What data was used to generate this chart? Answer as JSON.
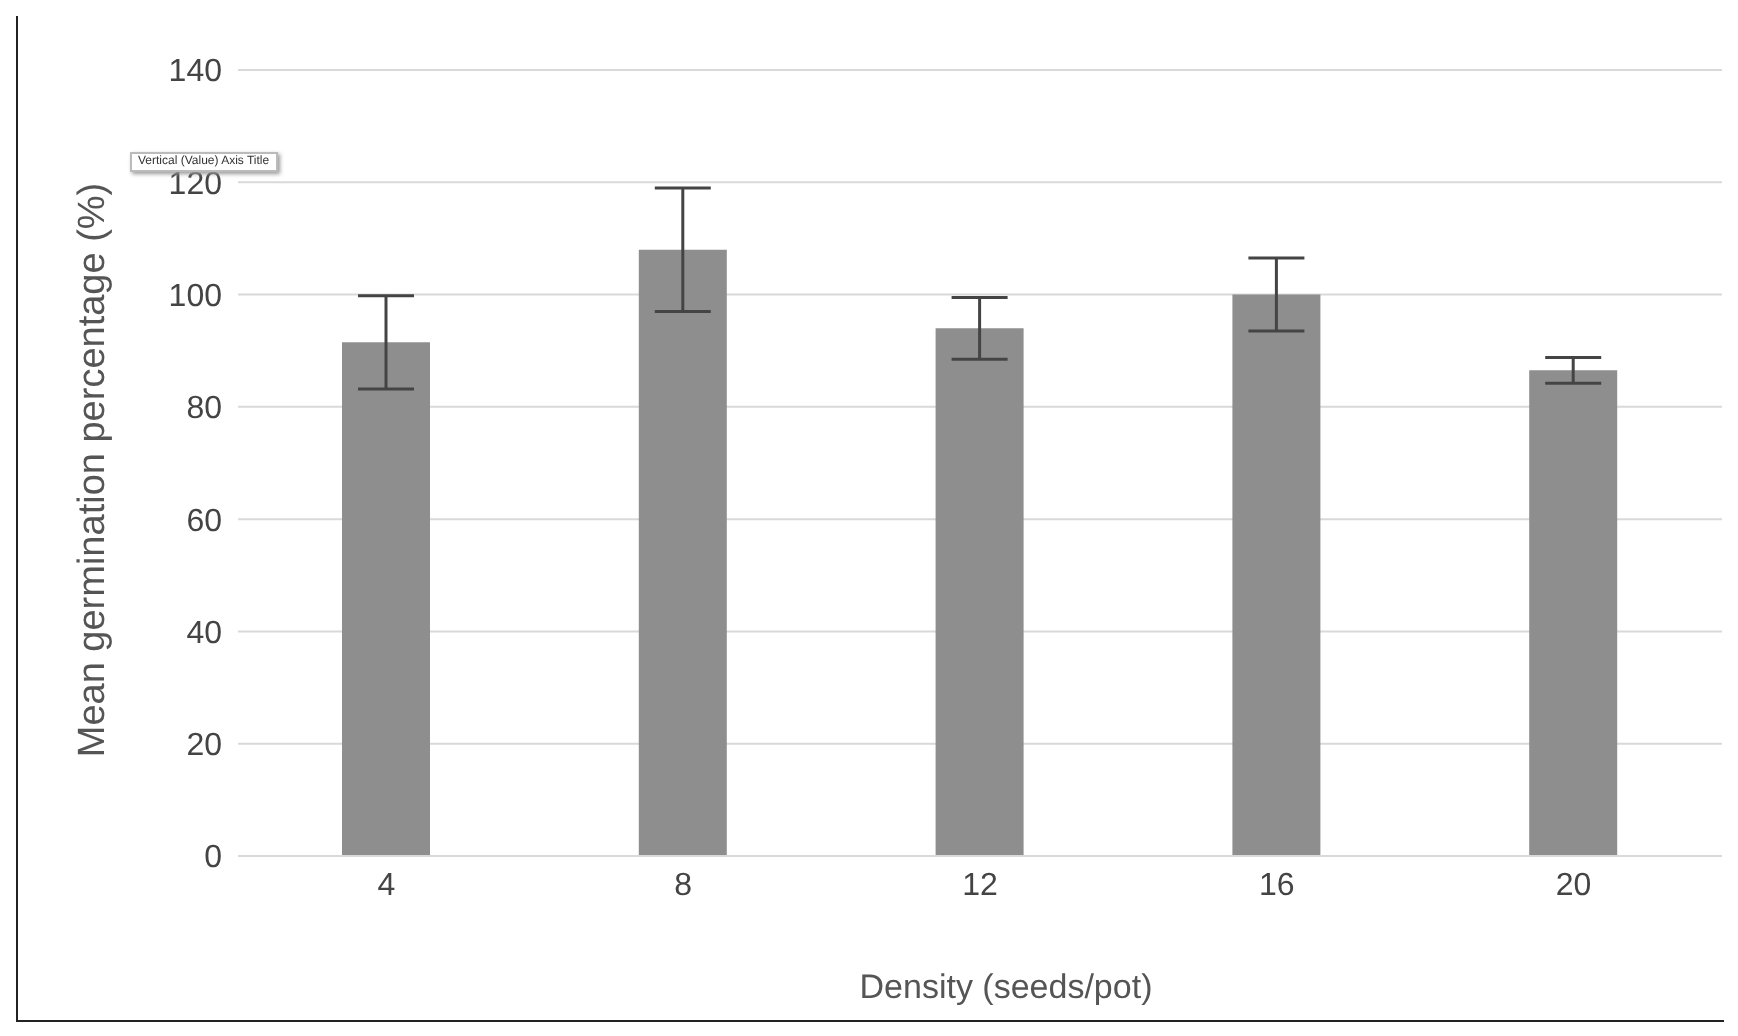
{
  "chart_data": {
    "type": "bar",
    "xlabel": "Density (seeds/pot)",
    "ylabel": "Mean germination percentage (%)",
    "categories": [
      "4",
      "8",
      "12",
      "16",
      "20"
    ],
    "values": [
      91.5,
      108,
      94,
      100,
      86.5
    ],
    "errors": [
      8.3,
      11,
      5.5,
      6.5,
      2.3
    ],
    "color": "#8e8e8e",
    "ylim": [
      0,
      140
    ],
    "yticks": [
      0,
      20,
      40,
      60,
      80,
      100,
      120,
      140
    ],
    "grid": "y",
    "annotations": [
      "Vertical (Value) Axis Title"
    ]
  }
}
